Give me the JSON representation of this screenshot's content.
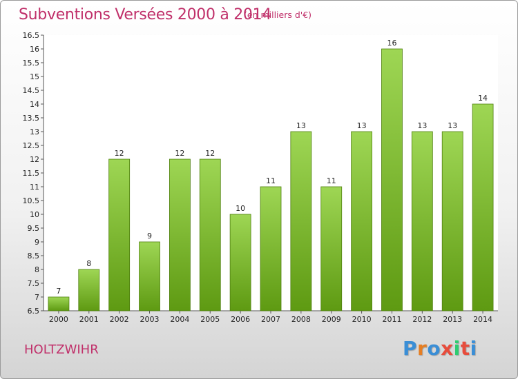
{
  "header": {
    "title": "Subventions Versées 2000 à 2014",
    "subtitle": "(en milliers d'€)"
  },
  "footer": {
    "commune": "HOLTZWIHR",
    "logo_text": "Proxiti"
  },
  "colors": {
    "accent": "#c0306a",
    "bar_top": "#9ed654",
    "bar_bottom": "#5e9a12",
    "logo_letters": [
      "#3a8ed6",
      "#e67e22",
      "#3a8ed6",
      "#e74c3c",
      "#2ecc71",
      "#e74c3c",
      "#3a8ed6"
    ]
  },
  "chart_data": {
    "type": "bar",
    "title": "Subventions Versées 2000 à 2014",
    "subtitle": "(en milliers d'€)",
    "categories": [
      "2000",
      "2001",
      "2002",
      "2003",
      "2004",
      "2005",
      "2006",
      "2007",
      "2008",
      "2009",
      "2010",
      "2011",
      "2012",
      "2013",
      "2014"
    ],
    "values": [
      7,
      8,
      12,
      9,
      12,
      12,
      10,
      11,
      13,
      11,
      13,
      16,
      13,
      13,
      14
    ],
    "ylim": [
      6.5,
      16.5
    ],
    "yticks": [
      "6.5",
      "7",
      "7.5",
      "8",
      "8.5",
      "9",
      "9.5",
      "10",
      "10.5",
      "11",
      "11.5",
      "12",
      "12.5",
      "13",
      "13.5",
      "14",
      "14.5",
      "15",
      "15.5",
      "16",
      "16.5"
    ],
    "grid": false,
    "legend": "none"
  }
}
